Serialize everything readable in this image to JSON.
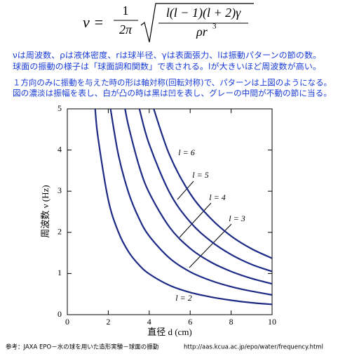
{
  "formula": {
    "lhs": "ν =",
    "coef_num": "1",
    "coef_den": "2π",
    "root_num": "l(l − 1)(l + 2)γ",
    "root_den": "ρr",
    "root_den_exp": "3"
  },
  "notes": [
    "νは周波数、ρは液体密度、rは球半径、γは表面張力、lは振動パターンの節の数。",
    "球面の振動の様子は「球面調和関数」で表される。lが大きいほど周波数が高い。",
    "１方向のみに振動を与えた時の形は軸対称(回転対称)で、パターンは上図のようになる。",
    "図の濃淡は振幅を表し、白が凸の時は黒は凹を表し、グレーの中間が不動の節に当る。"
  ],
  "chart_data": {
    "type": "line",
    "x_label": "直径 d (cm)",
    "y_label": "周波数 ν (Hz)",
    "xlim": [
      0,
      10
    ],
    "xticks": [
      0,
      2,
      4,
      6,
      8,
      10
    ],
    "ylim": [
      0,
      5
    ],
    "yticks": [
      0,
      1,
      2,
      3,
      4,
      5
    ],
    "series": [
      {
        "name": "l = 2",
        "color": "#1c2a86",
        "x": [
          1.36,
          1.5,
          2,
          2.5,
          3,
          3.5,
          4,
          5,
          6,
          7,
          8,
          9,
          10
        ],
        "values": [
          5.0,
          4.3,
          2.79,
          2.0,
          1.52,
          1.21,
          0.99,
          0.71,
          0.54,
          0.43,
          0.35,
          0.29,
          0.25
        ]
      },
      {
        "name": "l = 3",
        "color": "#1c2a86",
        "x": [
          2.11,
          2.5,
          3,
          3.5,
          4,
          5,
          6,
          7,
          8,
          9,
          10
        ],
        "values": [
          5.0,
          3.87,
          2.95,
          2.34,
          1.91,
          1.37,
          1.04,
          0.83,
          0.68,
          0.57,
          0.48
        ]
      },
      {
        "name": "l = 4",
        "color": "#1c2a86",
        "x": [
          2.82,
          3,
          3.5,
          4,
          5,
          6,
          7,
          8,
          9,
          10
        ],
        "values": [
          5.0,
          4.56,
          3.62,
          2.96,
          2.12,
          1.61,
          1.28,
          1.05,
          0.88,
          0.75
        ]
      },
      {
        "name": "l = 5",
        "color": "#1c2a86",
        "x": [
          3.52,
          4,
          5,
          6,
          7,
          8,
          9,
          10
        ],
        "values": [
          5.0,
          4.14,
          2.96,
          2.25,
          1.79,
          1.46,
          1.22,
          1.05
        ]
      },
      {
        "name": "l = 6",
        "color": "#1c2a86",
        "x": [
          4.22,
          5,
          6,
          7,
          8,
          9,
          10
        ],
        "values": [
          5.0,
          3.87,
          2.94,
          2.34,
          1.91,
          1.6,
          1.37
        ]
      }
    ]
  },
  "footer": {
    "reference": "参考：JAXA EPO－水の球を用いた造形実験－球面の振動",
    "url": "http://aas.kcua.ac.jp/epo/water/frequency.html"
  }
}
